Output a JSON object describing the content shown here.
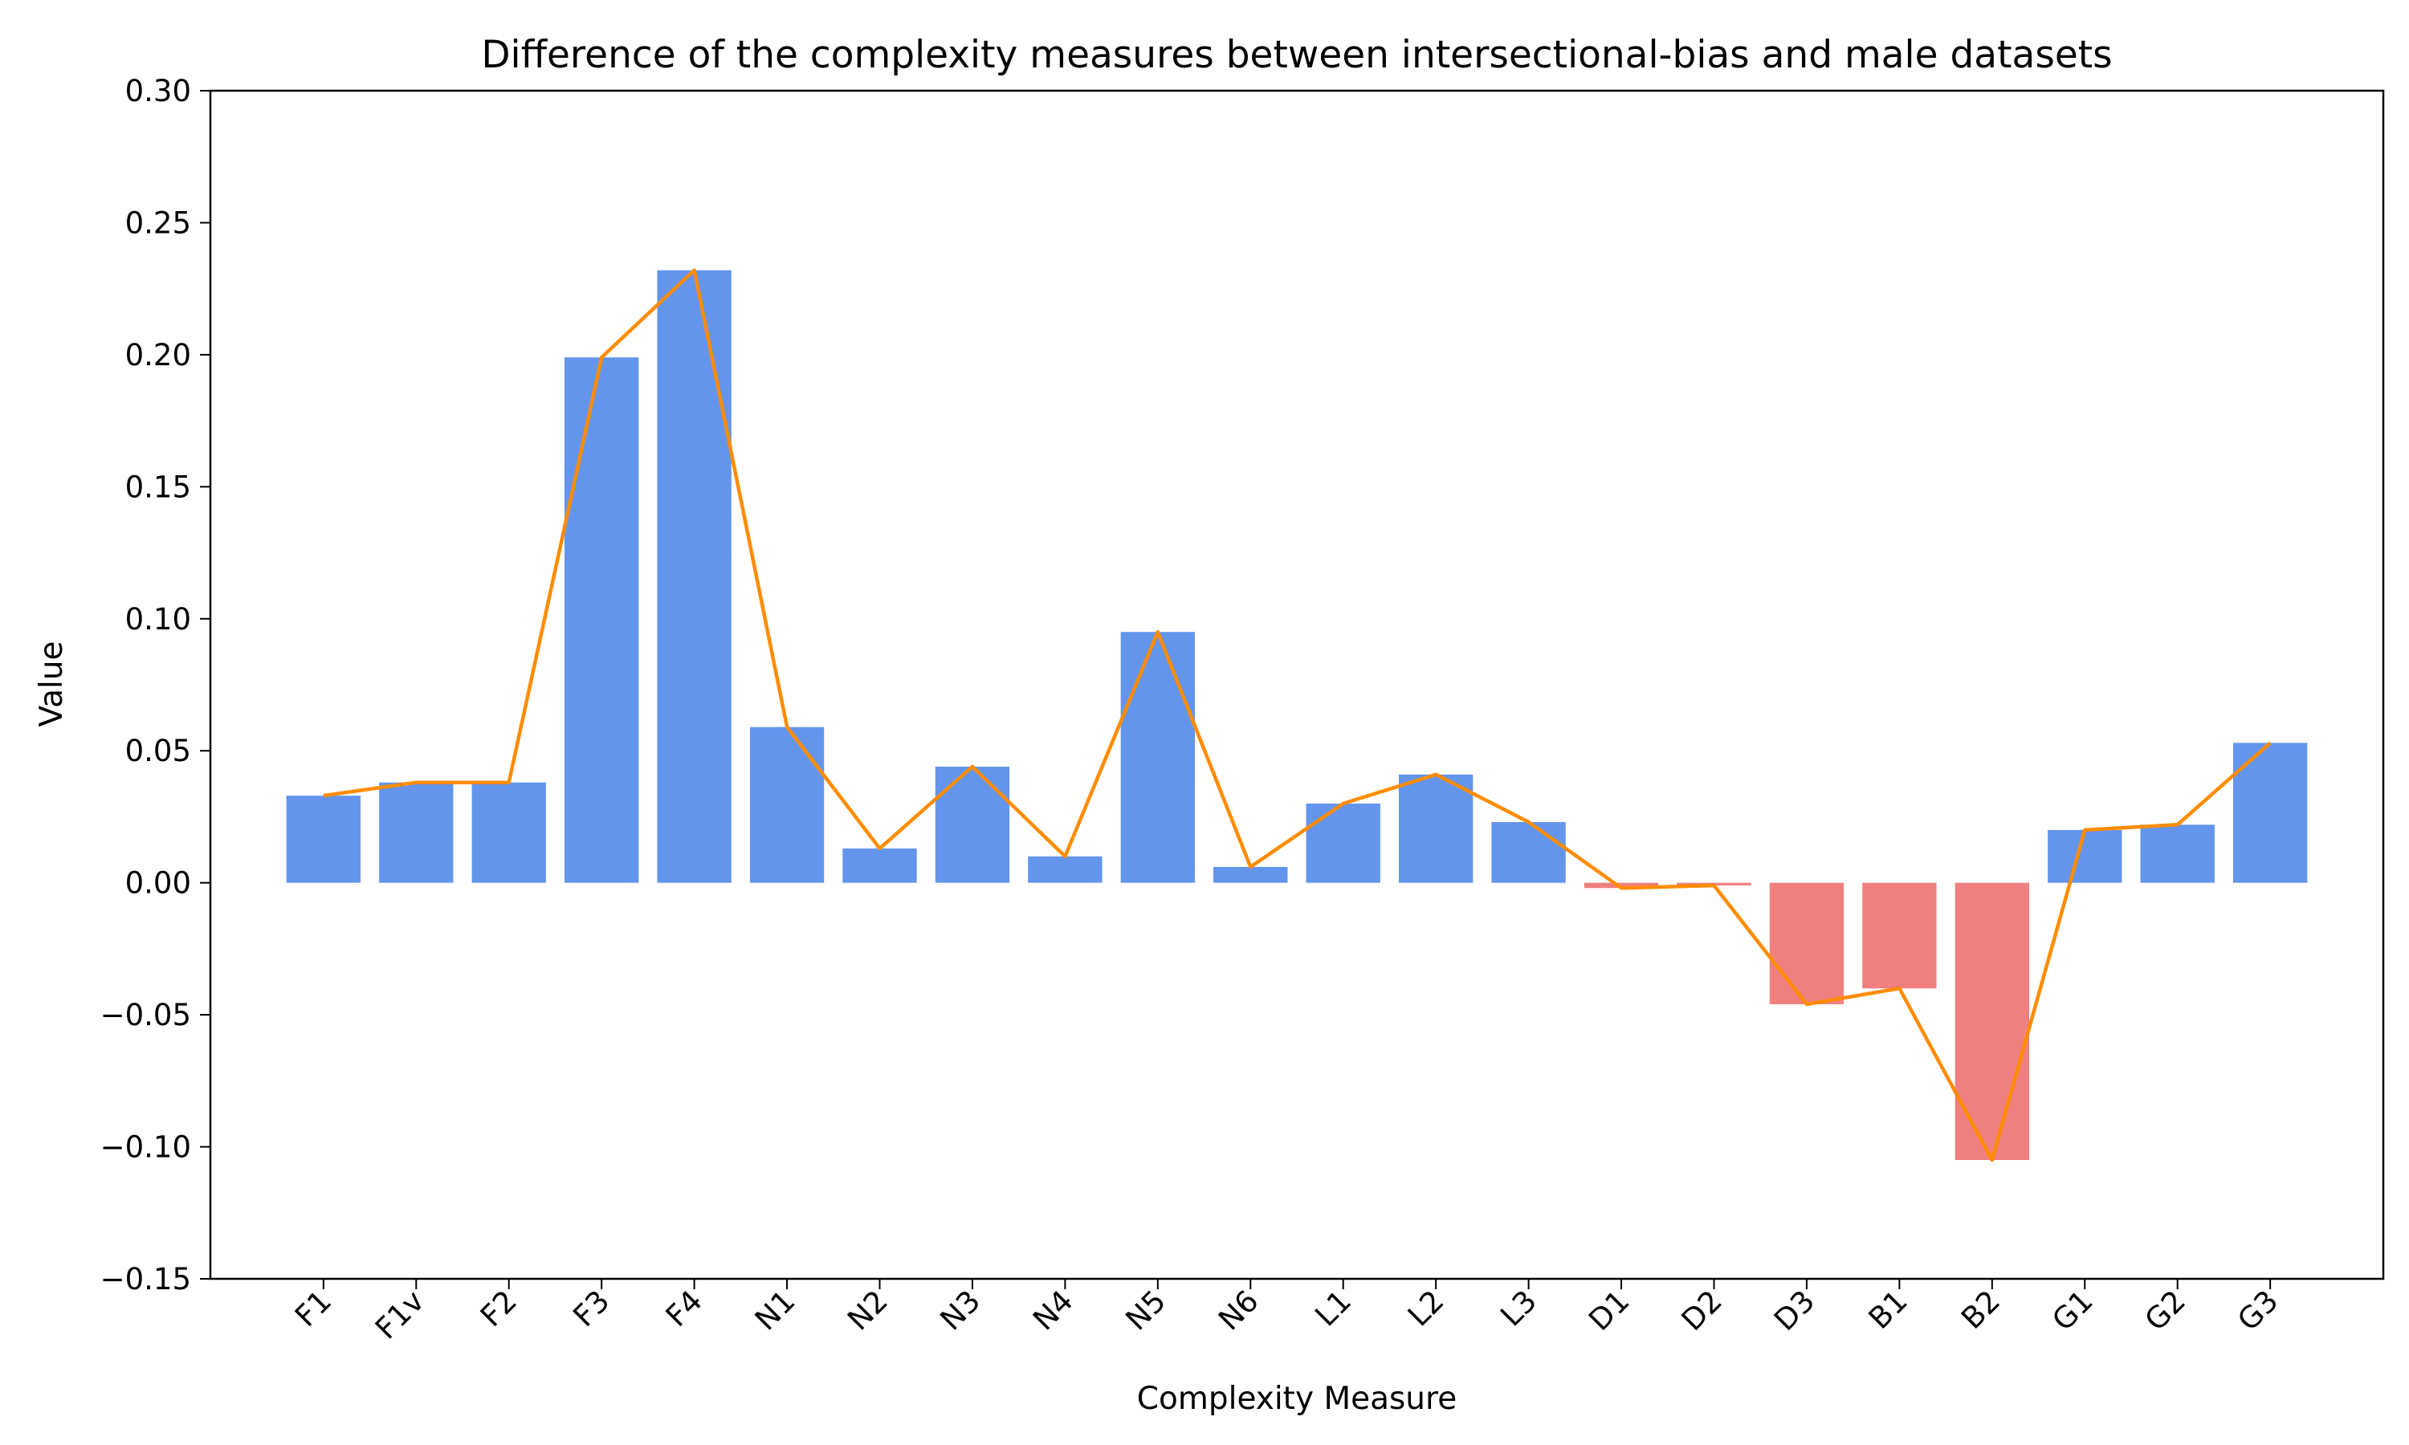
{
  "chart_data": {
    "type": "bar",
    "title": "Difference of the complexity measures between intersectional-bias and male datasets",
    "xlabel": "Complexity Measure",
    "ylabel": "Value",
    "ylim": [
      -0.15,
      0.3
    ],
    "yticks": [
      -0.15,
      -0.1,
      -0.05,
      0.0,
      0.05,
      0.1,
      0.15,
      0.2,
      0.25,
      0.3
    ],
    "ytick_labels": [
      "−0.15",
      "−0.10",
      "−0.05",
      "0.00",
      "0.05",
      "0.10",
      "0.15",
      "0.20",
      "0.25",
      "0.30"
    ],
    "categories": [
      "F1",
      "F1v",
      "F2",
      "F3",
      "F4",
      "N1",
      "N2",
      "N3",
      "N4",
      "N5",
      "N6",
      "L1",
      "L2",
      "L3",
      "D1",
      "D2",
      "D3",
      "B1",
      "B2",
      "G1",
      "G2",
      "G3"
    ],
    "values": [
      0.033,
      0.038,
      0.038,
      0.199,
      0.232,
      0.059,
      0.013,
      0.044,
      0.01,
      0.095,
      0.006,
      0.03,
      0.041,
      0.023,
      -0.002,
      -0.001,
      -0.046,
      -0.04,
      -0.105,
      0.02,
      0.022,
      0.053
    ],
    "grid": false,
    "colors": {
      "positive_bar": "#6495ED",
      "negative_bar": "#F08080",
      "line": "#FF8C00"
    }
  }
}
